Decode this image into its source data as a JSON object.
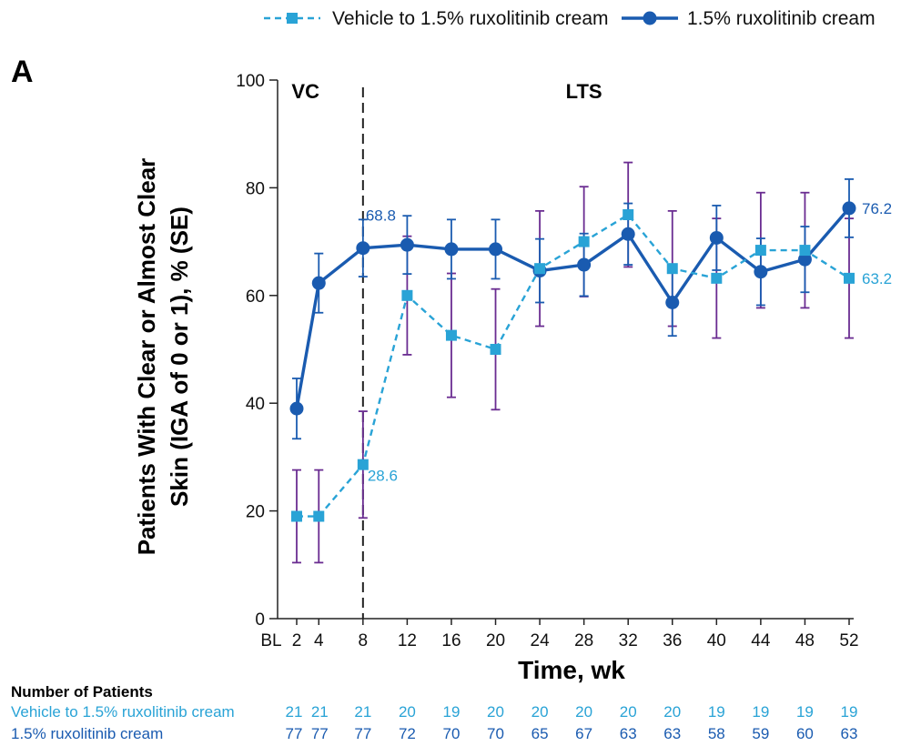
{
  "panel_label": "A",
  "colors": {
    "vehicle": "#29a3d6",
    "ruxolitinib": "#1a5bb0",
    "error_bar": "#6a2c91",
    "axis": "#222222"
  },
  "chart_data": {
    "type": "line",
    "title": "",
    "xlabel": "Time, wk",
    "ylabel_lines": [
      "Patients With Clear or Almost Clear",
      "Skin (IGA of 0 or 1), % (SE)"
    ],
    "ylim": [
      0,
      100
    ],
    "yticks": [
      0,
      20,
      40,
      60,
      80,
      100
    ],
    "xticks": [
      {
        "label": "BL",
        "week": 0
      },
      {
        "label": "2",
        "week": 2
      },
      {
        "label": "4",
        "week": 4
      },
      {
        "label": "8",
        "week": 8
      },
      {
        "label": "12",
        "week": 12
      },
      {
        "label": "16",
        "week": 16
      },
      {
        "label": "20",
        "week": 20
      },
      {
        "label": "24",
        "week": 24
      },
      {
        "label": "28",
        "week": 28
      },
      {
        "label": "32",
        "week": 32
      },
      {
        "label": "36",
        "week": 36
      },
      {
        "label": "40",
        "week": 40
      },
      {
        "label": "44",
        "week": 44
      },
      {
        "label": "48",
        "week": 48
      },
      {
        "label": "52",
        "week": 52
      }
    ],
    "period_labels": [
      {
        "text": "VC",
        "week": 2.8
      },
      {
        "text": "LTS",
        "week": 28
      }
    ],
    "divider_week": 8,
    "legend_position": "top",
    "series": [
      {
        "name": "Vehicle to 1.5% ruxolitinib cream",
        "key": "vehicle",
        "style": "dashed",
        "marker": "square",
        "x": [
          2,
          4,
          8,
          12,
          16,
          20,
          24,
          28,
          32,
          36,
          40,
          44,
          48,
          52
        ],
        "values": [
          19.0,
          19.0,
          28.6,
          60.0,
          52.6,
          50.0,
          65.0,
          70.0,
          75.0,
          65.0,
          63.2,
          68.4,
          68.4,
          63.2
        ],
        "se_low": [
          10.4,
          10.4,
          18.7,
          49.0,
          41.1,
          38.8,
          54.3,
          59.8,
          65.3,
          54.3,
          52.1,
          57.7,
          57.7,
          52.1
        ],
        "se_high": [
          27.6,
          27.6,
          38.5,
          71.0,
          64.1,
          61.2,
          75.7,
          80.2,
          84.7,
          75.7,
          74.3,
          79.1,
          79.1,
          74.3
        ],
        "point_labels": [
          {
            "week": 8,
            "text": "28.6"
          },
          {
            "week": 52,
            "text": "63.2"
          }
        ]
      },
      {
        "name": "1.5% ruxolitinib cream",
        "key": "ruxolitinib",
        "style": "solid",
        "marker": "circle",
        "x": [
          2,
          4,
          8,
          12,
          16,
          20,
          24,
          28,
          32,
          36,
          40,
          44,
          48,
          52
        ],
        "values": [
          39.0,
          62.3,
          68.8,
          69.4,
          68.6,
          68.6,
          64.6,
          65.7,
          71.4,
          58.7,
          70.7,
          64.4,
          66.7,
          76.2
        ],
        "se_low": [
          33.4,
          56.8,
          63.5,
          64.0,
          63.1,
          63.1,
          58.7,
          59.9,
          65.7,
          52.5,
          64.7,
          58.2,
          60.6,
          70.8
        ],
        "se_high": [
          44.6,
          67.8,
          74.1,
          74.8,
          74.1,
          74.1,
          70.5,
          71.5,
          77.1,
          64.9,
          76.7,
          70.6,
          72.8,
          81.6
        ],
        "point_labels": [
          {
            "week": 8,
            "text": "68.8"
          },
          {
            "week": 52,
            "text": "76.2"
          }
        ]
      }
    ]
  },
  "number_of_patients": {
    "heading": "Number of Patients",
    "rows": [
      {
        "label": "Vehicle to 1.5% ruxolitinib cream",
        "key": "vehicle",
        "weeks": [
          2,
          4,
          8,
          12,
          16,
          20,
          24,
          28,
          32,
          36,
          40,
          44,
          48,
          52
        ],
        "values": [
          "21",
          "21",
          "21",
          "20",
          "19",
          "20",
          "20",
          "20",
          "20",
          "20",
          "19",
          "19",
          "19",
          "19"
        ]
      },
      {
        "label": "1.5% ruxolitinib cream",
        "key": "ruxolitinib",
        "weeks": [
          2,
          4,
          8,
          12,
          16,
          20,
          24,
          28,
          32,
          36,
          40,
          44,
          48,
          52
        ],
        "values": [
          "77",
          "77",
          "77",
          "72",
          "70",
          "70",
          "65",
          "67",
          "63",
          "63",
          "58",
          "59",
          "60",
          "63"
        ]
      }
    ]
  }
}
